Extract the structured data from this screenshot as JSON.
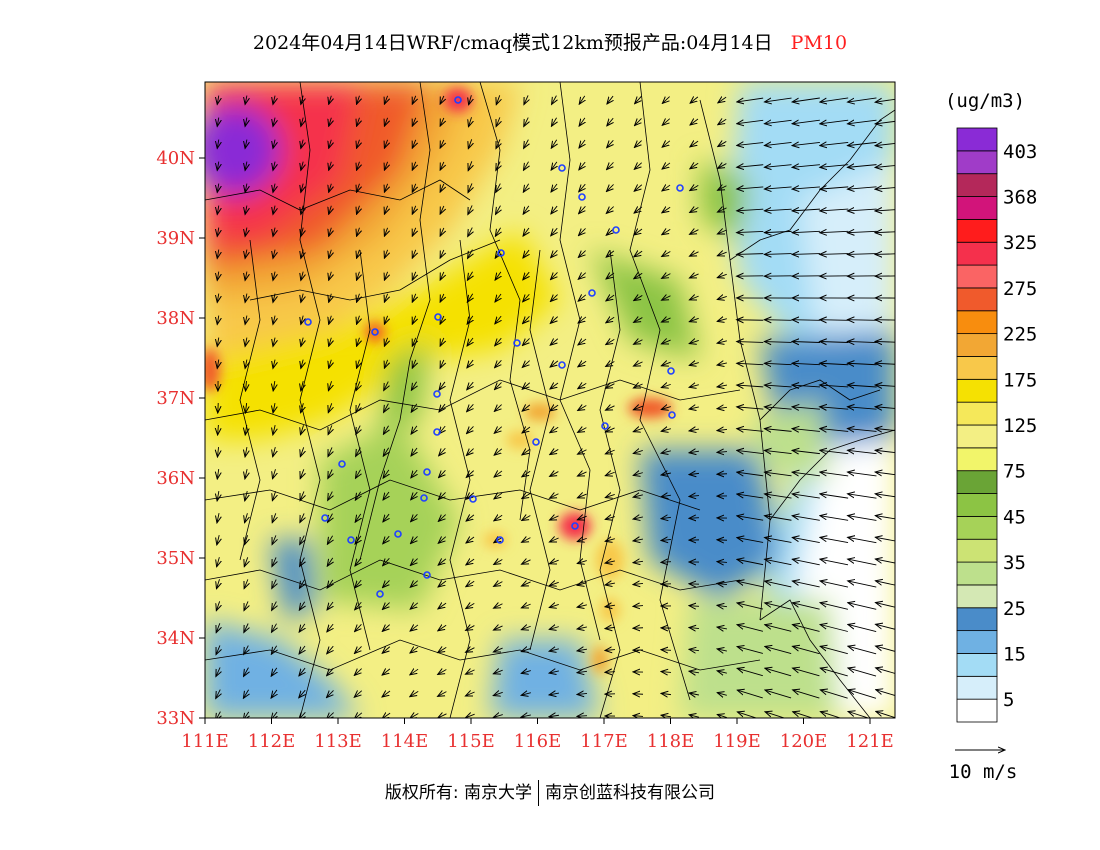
{
  "title": {
    "text": "2024年04月14日WRF/cmaq模式12km预报产品:04月14日",
    "variable": "PM10"
  },
  "legend": {
    "unit": "(ug/m3)",
    "colors": [
      "#ffffff",
      "#d6eefa",
      "#a3dcf5",
      "#6fb1e3",
      "#4a8cc9",
      "#d4e8b4",
      "#bde08c",
      "#cce374",
      "#a6d258",
      "#8cc444",
      "#6aa436",
      "#f2f56a",
      "#f3ef84",
      "#f5e85a",
      "#f5e102",
      "#f8c84a",
      "#f2a734",
      "#f88d0e",
      "#f05a2c",
      "#fa6464",
      "#f5304c",
      "#ff1c1c",
      "#d2147a",
      "#b4285a",
      "#a03cc8",
      "#8a2bd6"
    ],
    "labels": [
      "5",
      "15",
      "25",
      "35",
      "45",
      "75",
      "125",
      "175",
      "225",
      "275",
      "325",
      "368",
      "403"
    ]
  },
  "axes": {
    "lat_labels": [
      "33N",
      "34N",
      "35N",
      "36N",
      "37N",
      "38N",
      "39N",
      "40N"
    ],
    "lon_labels": [
      "111E",
      "112E",
      "113E",
      "114E",
      "115E",
      "116E",
      "117E",
      "118E",
      "119E",
      "120E",
      "121E"
    ]
  },
  "wind_key": {
    "label": "10 m/s"
  },
  "credit": {
    "part1": "版权所有: 南京大学",
    "part2": "南京创蓝科技有限公司"
  }
}
